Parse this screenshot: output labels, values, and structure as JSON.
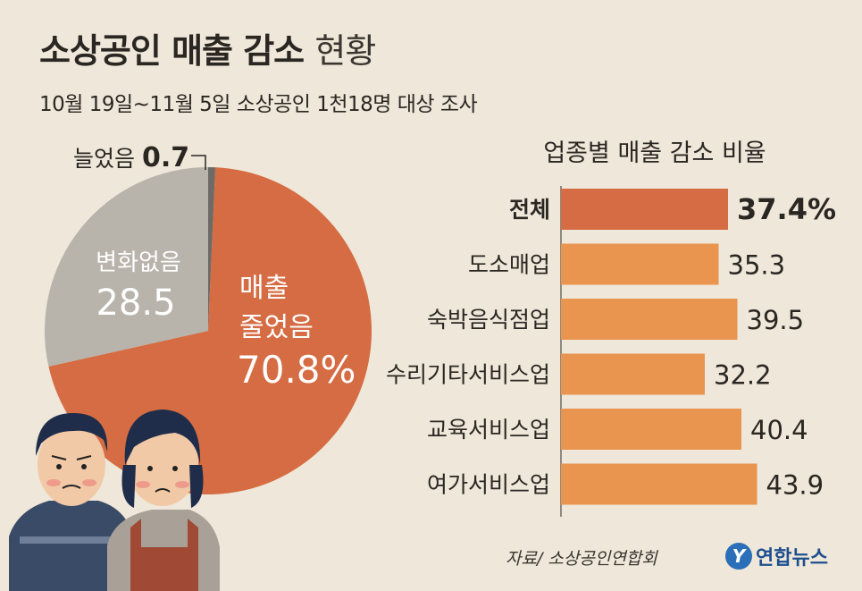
{
  "title": {
    "bold": "소상공인 매출 감소",
    "light": "현황"
  },
  "subtitle": "10월 19일~11월 5일 소상공인 1천18명 대상 조사",
  "source": "자료/ 소상공인연합회",
  "logo": {
    "text": "연합뉴스",
    "mark": "Y"
  },
  "colors": {
    "pie_decreased": "#d66c43",
    "pie_nochange": "#b8b3ab",
    "pie_increased": "#6e6a65",
    "bar_total": "#d66c43",
    "bar_other": "#e99550"
  },
  "chart_data": [
    {
      "type": "pie",
      "slices": [
        {
          "label": "늘었음",
          "value": 0.7
        },
        {
          "label": "매출 줄었음",
          "value": 70.8
        },
        {
          "label": "변화없음",
          "value": 28.5
        }
      ],
      "labels": {
        "increased": {
          "name": "늘었음",
          "value": "0.7"
        },
        "decreased": {
          "line1": "매출",
          "line2": "줄었음",
          "value": "70.8%"
        },
        "nochange": {
          "name": "변화없음",
          "value": "28.5"
        }
      }
    },
    {
      "type": "bar",
      "title": "업종별 매출 감소 비율",
      "categories": [
        "전체",
        "도소매업",
        "숙박음식점업",
        "수리기타서비스업",
        "교육서비스업",
        "여가서비스업"
      ],
      "values": [
        37.4,
        35.3,
        39.5,
        32.2,
        40.4,
        43.9
      ],
      "value_labels": [
        "37.4%",
        "35.3",
        "39.5",
        "32.2",
        "40.4",
        "43.9"
      ],
      "xlim": [
        0,
        50
      ]
    }
  ]
}
